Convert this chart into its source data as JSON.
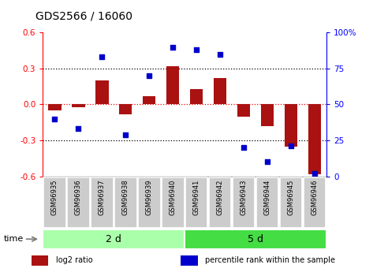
{
  "title": "GDS2566 / 16060",
  "samples": [
    "GSM96935",
    "GSM96936",
    "GSM96937",
    "GSM96938",
    "GSM96939",
    "GSM96940",
    "GSM96941",
    "GSM96942",
    "GSM96943",
    "GSM96944",
    "GSM96945",
    "GSM96946"
  ],
  "log2_ratio": [
    -0.05,
    -0.02,
    0.2,
    -0.08,
    0.07,
    0.32,
    0.13,
    0.22,
    -0.1,
    -0.18,
    -0.35,
    -0.58
  ],
  "percentile_rank": [
    40,
    33,
    83,
    29,
    70,
    90,
    88,
    85,
    20,
    10,
    21,
    2
  ],
  "groups": [
    {
      "label": "2 d",
      "start": 0,
      "end": 6,
      "color": "#aaffaa"
    },
    {
      "label": "5 d",
      "start": 6,
      "end": 12,
      "color": "#44dd44"
    }
  ],
  "time_label": "time",
  "ylim_left": [
    -0.6,
    0.6
  ],
  "ylim_right": [
    0,
    100
  ],
  "yticks_left": [
    -0.6,
    -0.3,
    0.0,
    0.3,
    0.6
  ],
  "yticks_right": [
    0,
    25,
    50,
    75,
    100
  ],
  "ytick_labels_right": [
    "0",
    "25",
    "50",
    "75",
    "100%"
  ],
  "hlines_dotted": [
    -0.3,
    0.3
  ],
  "hline_zero": 0.0,
  "bar_color": "#aa1111",
  "dot_color": "#0000cc",
  "bar_width": 0.55,
  "background_color": "#ffffff",
  "plot_bg_color": "#ffffff",
  "sample_box_color": "#cccccc",
  "legend_items": [
    {
      "label": "log2 ratio",
      "color": "#aa1111"
    },
    {
      "label": "percentile rank within the sample",
      "color": "#0000cc"
    }
  ]
}
